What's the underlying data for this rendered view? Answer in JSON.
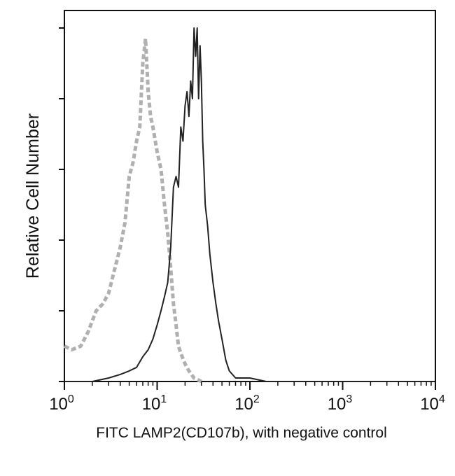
{
  "chart_data": {
    "type": "line",
    "xlabel": "FITC LAMP2(CD107b), with negative control",
    "ylabel": "Relative Cell Number",
    "x_scale": "log",
    "xlim": [
      1,
      10000
    ],
    "ylim": [
      0,
      100
    ],
    "x_ticks": [
      {
        "value": 1,
        "base": "10",
        "exp": "0"
      },
      {
        "value": 10,
        "base": "10",
        "exp": "1"
      },
      {
        "value": 100,
        "base": "10",
        "exp": "2"
      },
      {
        "value": 1000,
        "base": "10",
        "exp": "3"
      },
      {
        "value": 10000,
        "base": "10",
        "exp": "4"
      }
    ],
    "y_ticks": [
      0,
      20,
      40,
      60,
      80,
      100
    ],
    "grid": false,
    "legend": "none",
    "series": [
      {
        "color": "#b0b0b0",
        "style": "dashed",
        "x": [
          1.0,
          1.2,
          1.5,
          1.8,
          2.2,
          2.6,
          3.0,
          3.5,
          4.0,
          4.5,
          5.0,
          5.5,
          6.0,
          6.5,
          7.0,
          7.5,
          8.0,
          8.5,
          9.0,
          10.0,
          11.0,
          12.0,
          13.0,
          14.0,
          15.0,
          16.0,
          17.0,
          18.0,
          20.0,
          22.0,
          25.0,
          30.0
        ],
        "y": [
          10,
          9,
          10,
          14,
          20,
          22,
          25,
          32,
          38,
          45,
          58,
          62,
          68,
          72,
          90,
          97,
          82,
          75,
          72,
          65,
          60,
          50,
          42,
          32,
          22,
          16,
          10,
          8,
          5,
          3,
          1,
          0
        ]
      },
      {
        "color": "#222222",
        "style": "solid",
        "x": [
          1.0,
          2.0,
          3.0,
          4.0,
          5.0,
          6.0,
          7.0,
          8.0,
          9.0,
          10.0,
          11.0,
          12.0,
          13.0,
          14.0,
          15.0,
          16.0,
          17.0,
          18.0,
          19.0,
          20.0,
          21.0,
          22.0,
          23.0,
          24.0,
          25.0,
          26.0,
          27.0,
          28.0,
          29.0,
          30.0,
          31.0,
          32.0,
          33.0,
          35.0,
          37.0,
          40.0,
          43.0,
          46.0,
          50.0,
          55.0,
          60.0,
          70.0,
          80.0,
          100.0,
          150.0,
          200.0,
          300.0,
          500.0,
          1000.0,
          3000.0,
          10000.0
        ],
        "y": [
          0,
          0,
          1,
          2,
          3,
          4,
          7,
          9,
          12,
          16,
          20,
          24,
          28,
          38,
          55,
          58,
          55,
          72,
          68,
          78,
          82,
          75,
          85,
          80,
          100,
          92,
          100,
          80,
          95,
          85,
          68,
          60,
          50,
          44,
          36,
          28,
          22,
          17,
          12,
          6,
          3,
          1,
          1,
          1,
          0,
          0,
          0,
          0,
          0,
          0,
          0
        ]
      }
    ]
  }
}
